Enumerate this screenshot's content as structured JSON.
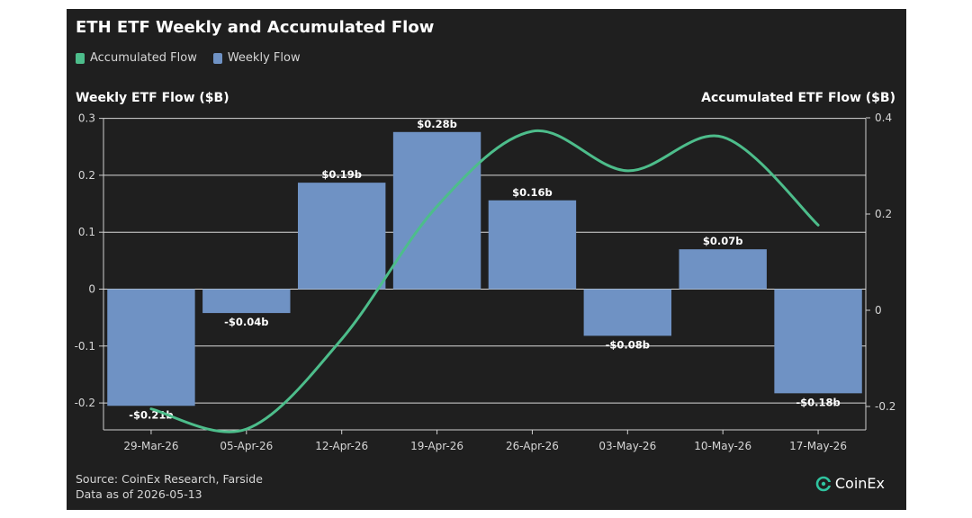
{
  "title": "ETH ETF Weekly and Accumulated Flow",
  "legend": [
    {
      "label": "Accumulated Flow",
      "color": "#4dbd8b"
    },
    {
      "label": "Weekly Flow",
      "color": "#6f92c4"
    }
  ],
  "left_axis_title": "Weekly ETF Flow ($B)",
  "right_axis_title": "Accumulated ETF Flow ($B)",
  "footer": {
    "source": "Source: CoinEx Research, Farside",
    "date": "Data as of 2026-05-13"
  },
  "brand": {
    "name": "CoinEx",
    "icon": "coinex-logo-icon"
  },
  "chart_data": {
    "type": "bar",
    "title": "ETH ETF Weekly and Accumulated Flow",
    "categories": [
      "29-Mar-26",
      "05-Apr-26",
      "12-Apr-26",
      "19-Apr-26",
      "26-Apr-26",
      "03-May-26",
      "10-May-26",
      "17-May-26"
    ],
    "series": [
      {
        "name": "Weekly Flow",
        "type": "bar",
        "axis": "left",
        "color": "#6f92c4",
        "values": [
          -0.205,
          -0.042,
          0.187,
          0.276,
          0.156,
          -0.082,
          0.07,
          -0.183
        ],
        "data_labels": [
          "-$0.21b",
          "-$0.04b",
          "$0.19b",
          "$0.28b",
          "$0.16b",
          "-$0.08b",
          "$0.07b",
          "-$0.18b"
        ]
      },
      {
        "name": "Accumulated Flow",
        "type": "line",
        "axis": "right",
        "color": "#4dbd8b",
        "values": [
          -0.205,
          -0.247,
          -0.06,
          0.216,
          0.372,
          0.29,
          0.36,
          0.177
        ]
      }
    ],
    "ylabel_left": "Weekly ETF Flow ($B)",
    "ylabel_right": "Accumulated ETF Flow ($B)",
    "ylim_left": [
      -0.25,
      0.3
    ],
    "ylim_right": [
      -0.25,
      0.4
    ],
    "yticks_left": [
      "0.3",
      "0.2",
      "0.1",
      "0",
      "-0.1",
      "-0.2"
    ],
    "yticks_left_values": [
      0.3,
      0.2,
      0.1,
      0,
      -0.1,
      -0.2
    ],
    "yticks_right": [
      "0.4",
      "0.2",
      "0",
      "-0.2"
    ],
    "yticks_right_values": [
      0.4,
      0.2,
      0,
      -0.2
    ],
    "grid": true,
    "legend_position": "top-left"
  }
}
